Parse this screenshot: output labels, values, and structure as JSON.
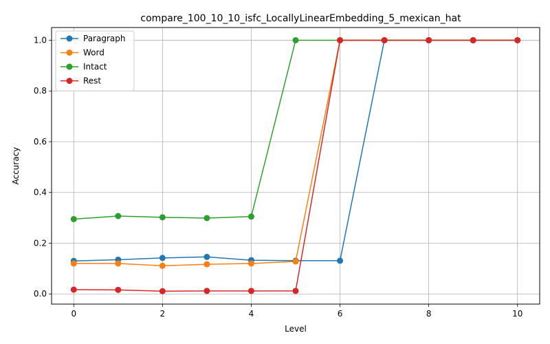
{
  "chart_data": {
    "type": "line",
    "title": "compare_100_10_10_isfc_LocallyLinearEmbedding_5_mexican_hat",
    "xlabel": "Level",
    "ylabel": "Accuracy",
    "xlim": [
      -0.5,
      10.5
    ],
    "ylim": [
      -0.04,
      1.05
    ],
    "xticks": [
      0,
      2,
      4,
      6,
      8,
      10
    ],
    "yticks": [
      0.0,
      0.2,
      0.4,
      0.6,
      0.8,
      1.0
    ],
    "xtick_labels": [
      "0",
      "2",
      "4",
      "6",
      "8",
      "10"
    ],
    "ytick_labels": [
      "0.0",
      "0.2",
      "0.4",
      "0.6",
      "0.8",
      "1.0"
    ],
    "grid": true,
    "legend": "upper-left",
    "x": [
      0,
      1,
      2,
      3,
      4,
      5,
      6,
      7,
      8,
      9,
      10
    ],
    "series": [
      {
        "name": "Paragraph",
        "color": "#1f77b4",
        "values": [
          0.13,
          0.135,
          0.142,
          0.146,
          0.133,
          0.131,
          0.131,
          1.0,
          1.0,
          1.0,
          1.0
        ]
      },
      {
        "name": "Word",
        "color": "#ff7f0e",
        "values": [
          0.12,
          0.12,
          0.111,
          0.117,
          0.12,
          0.128,
          1.0,
          1.0,
          1.0,
          1.0,
          1.0
        ]
      },
      {
        "name": "Intact",
        "color": "#2ca02c",
        "values": [
          0.295,
          0.307,
          0.302,
          0.299,
          0.305,
          1.0,
          1.0,
          1.0,
          1.0,
          1.0,
          1.0
        ]
      },
      {
        "name": "Rest",
        "color": "#d62728",
        "values": [
          0.017,
          0.016,
          0.011,
          0.012,
          0.012,
          0.012,
          1.0,
          1.0,
          1.0,
          1.0,
          1.0
        ]
      }
    ]
  }
}
